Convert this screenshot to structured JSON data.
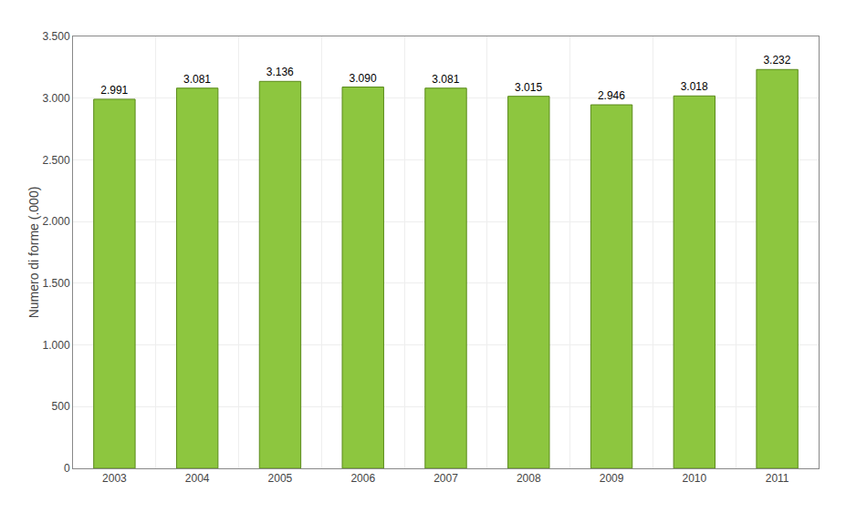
{
  "chart_data": {
    "type": "bar",
    "y_label": "Numero di forme (.000)",
    "categories": [
      "2003",
      "2004",
      "2005",
      "2006",
      "2007",
      "2008",
      "2009",
      "2010",
      "2011"
    ],
    "values": [
      2991,
      3081,
      3136,
      3090,
      3081,
      3015,
      2946,
      3018,
      3232
    ],
    "value_labels": [
      "2.991",
      "3.081",
      "3.136",
      "3.090",
      "3.081",
      "3.015",
      "2.946",
      "3.018",
      "3.232"
    ],
    "data_labels": true,
    "color": "#8dc63f",
    "ylim": [
      0,
      3500
    ],
    "yticks": [
      0,
      500,
      {
        "value": 1000,
        "label": "1.000"
      },
      {
        "value": 1500,
        "label": "1.500"
      },
      {
        "value": 2000,
        "label": "2.000"
      },
      {
        "value": 2500,
        "label": "2.500"
      },
      {
        "value": 3000,
        "label": "3.000"
      },
      {
        "value": 3500,
        "label": "3.500"
      }
    ],
    "grid": true
  }
}
